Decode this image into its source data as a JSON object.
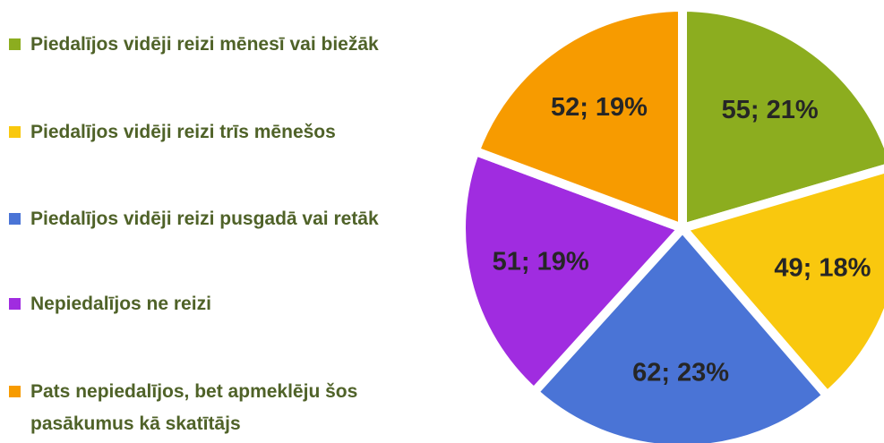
{
  "chart_data": {
    "type": "pie",
    "categories": [
      "Piedalījos vidēji reizi mēnesī vai biežāk",
      "Piedalījos vidēji reizi trīs mēnešos",
      "Piedalījos vidēji reizi pusgadā vai retāk",
      "Nepiedalījos ne reizi",
      "Pats nepiedalījos, bet apmeklēju šos pasākumus kā skatītājs"
    ],
    "values": [
      55,
      49,
      62,
      51,
      52
    ],
    "value_labels": [
      "55; 21%",
      "49; 18%",
      "62; 23%",
      "51; 19%",
      "52; 19%"
    ],
    "colors": [
      "#8cad1f",
      "#f9c80e",
      "#4a74d6",
      "#a02ce0",
      "#f79b00"
    ],
    "legend": "left"
  }
}
